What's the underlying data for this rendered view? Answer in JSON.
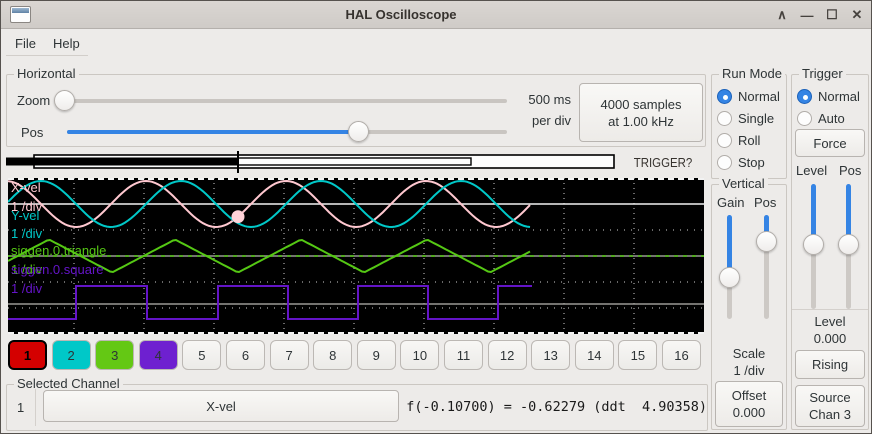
{
  "window": {
    "title": "HAL Oscilloscope",
    "icons": {
      "shade": "∧",
      "minimize": "—",
      "maximize": "☐",
      "close": "✕"
    }
  },
  "menu": {
    "items": [
      "File",
      "Help"
    ]
  },
  "horizontal": {
    "label": "Horizontal",
    "zoom_label": "Zoom",
    "pos_label": "Pos",
    "rate_line1": "500 ms",
    "rate_line2": "per div",
    "samples_line1": "4000 samples",
    "samples_line2": "at 1.00 kHz",
    "trigger_bar_label": "TRIGGER?"
  },
  "run_mode": {
    "label": "Run Mode",
    "options": [
      "Normal",
      "Single",
      "Roll",
      "Stop"
    ],
    "selected": "Normal"
  },
  "trigger_panel": {
    "label": "Trigger",
    "options": [
      "Normal",
      "Auto"
    ],
    "selected": "Normal",
    "force_label": "Force",
    "level_slider_label": "Level",
    "pos_slider_label": "Pos",
    "level_label": "Level",
    "level_value": "0.000",
    "edge_label": "Rising",
    "source_line1": "Source",
    "source_line2": "Chan 3"
  },
  "vertical_panel": {
    "label": "Vertical",
    "gain_label": "Gain",
    "pos_label": "Pos",
    "scale_label": "Scale",
    "scale_value": "1 /div",
    "offset_label": "Offset",
    "offset_value": "0.000"
  },
  "channels": [
    {
      "id": "1",
      "name": "X-vel",
      "scale": "1 /div",
      "trace_color": "#ffc9d1",
      "button_color": "#d40000",
      "selected": true
    },
    {
      "id": "2",
      "name": "Y-vel",
      "scale": "1 /div",
      "trace_color": "#00c8c8",
      "button_color": "#00c8c8",
      "selected": false
    },
    {
      "id": "3",
      "name": "siggen.0.triangle",
      "scale": "1 /div",
      "trace_color": "#55c814",
      "button_color": "#64c814",
      "selected": false
    },
    {
      "id": "4",
      "name": "siggen.0.square",
      "scale": "1 /div",
      "trace_color": "#6414c8",
      "button_color": "#6e20d0",
      "selected": false
    }
  ],
  "channel_buttons": [
    "1",
    "2",
    "3",
    "4",
    "5",
    "6",
    "7",
    "8",
    "9",
    "10",
    "11",
    "12",
    "13",
    "14",
    "15",
    "16"
  ],
  "selected_channel": {
    "label": "Selected Channel",
    "number": "1",
    "name": "X-vel",
    "readout": "f(-0.10700) = -0.62279 (ddt  4.90358)"
  },
  "chart_data": {
    "type": "line",
    "title": "oscilloscope traces, 500 ms per div, 4000 samples at 1.00 kHz",
    "grid": {
      "vline_start": 66,
      "vline_step": 70,
      "vline_count": 9,
      "hlines": [
        26,
        52,
        78,
        104,
        130
      ]
    },
    "baselines": [
      {
        "y": 26,
        "color": "#f2f2f2",
        "green_dash": false
      },
      {
        "y": 78,
        "color": "#9a9996",
        "green_dash": true
      },
      {
        "y": 126,
        "color": "#9a9996",
        "green_dash": false
      }
    ],
    "series": [
      {
        "name": "X-vel",
        "shape": "sine",
        "color": "#ffc8d0",
        "baseline": 26,
        "amplitude": 23,
        "period": 140,
        "crest_x": -2,
        "x_end": 524
      },
      {
        "name": "Y-vel",
        "shape": "sine",
        "color": "#00c8c8",
        "baseline": 26,
        "amplitude": 23,
        "period": 140,
        "crest_x": 33,
        "x_end": 524
      },
      {
        "name": "siggen.0.triangle",
        "shape": "triangle",
        "color": "#55c814",
        "baseline": 78,
        "amplitude": 16.5,
        "period": 126,
        "crest_x": 41,
        "x_end": 524
      },
      {
        "name": "siggen.0.square",
        "shape": "square",
        "color": "#6414c8",
        "high_y": 108,
        "low_y": 141,
        "start_level": "low",
        "transitions": [
          68,
          139,
          210,
          280,
          350,
          420,
          490
        ],
        "x_end": 524
      }
    ],
    "trigger_point": {
      "x": 230,
      "on_series": "X-vel",
      "color": "#ffd2d8"
    }
  }
}
